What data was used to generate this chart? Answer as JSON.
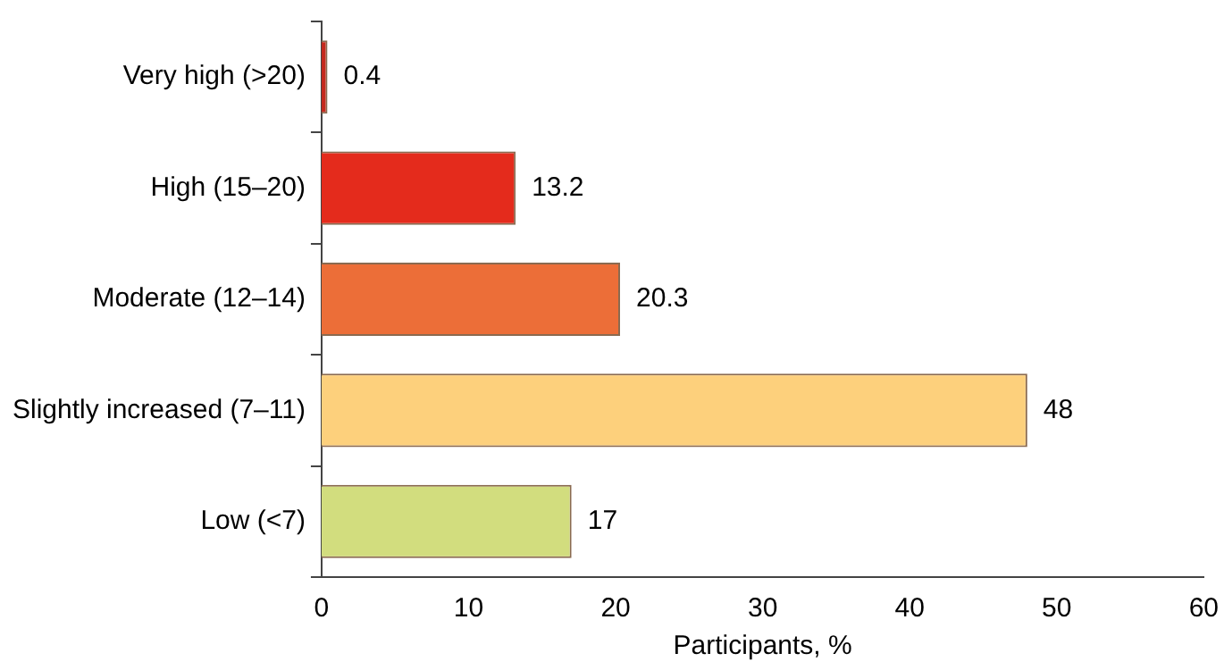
{
  "chart_data": {
    "type": "bar",
    "orientation": "horizontal",
    "xlabel": "Participants, %",
    "categories": [
      "Very high (>20)",
      "High (15–20)",
      "Moderate (12–14)",
      "Slightly increased (7–11)",
      "Low (<7)"
    ],
    "values": [
      0.4,
      13.2,
      20.3,
      48,
      17
    ],
    "colors": [
      "#c42a1e",
      "#e42b1c",
      "#ec6e38",
      "#fdd07c",
      "#d2dd7e"
    ],
    "xlim": [
      0,
      60
    ],
    "xticks": [
      0,
      10,
      20,
      30,
      40,
      50,
      60
    ],
    "grid": false,
    "legend": false,
    "data_labels": true
  }
}
